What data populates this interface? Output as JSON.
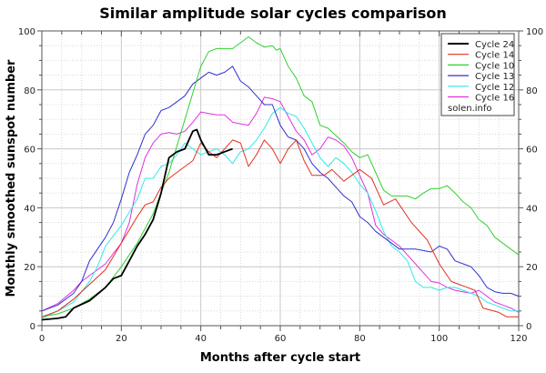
{
  "chart_data": {
    "type": "line",
    "title": "Similar amplitude solar cycles comparison",
    "xlabel": "Months after cycle start",
    "ylabel": "Monthly smoothed sunspot number",
    "xlim": [
      0,
      120
    ],
    "ylim": [
      0,
      100
    ],
    "xticks": [
      0,
      20,
      40,
      60,
      80,
      100,
      120
    ],
    "yticks": [
      0,
      20,
      40,
      60,
      80,
      100
    ],
    "grid": true,
    "right_axis_labels": true,
    "legend_position": "top-right",
    "legend_note": "solen.info",
    "series": [
      {
        "name": "Cycle 24",
        "color": "#000000",
        "points": [
          [
            0,
            2
          ],
          [
            4,
            2.5
          ],
          [
            6,
            3
          ],
          [
            8,
            6
          ],
          [
            12,
            8.5
          ],
          [
            16,
            13
          ],
          [
            18,
            16
          ],
          [
            20,
            17
          ],
          [
            22,
            22
          ],
          [
            24,
            27
          ],
          [
            26,
            31
          ],
          [
            28,
            36
          ],
          [
            30,
            45
          ],
          [
            32,
            57
          ],
          [
            34,
            59
          ],
          [
            36,
            60
          ],
          [
            38,
            66
          ],
          [
            39,
            66.5
          ],
          [
            40,
            63
          ],
          [
            42,
            58
          ],
          [
            44,
            58
          ],
          [
            46,
            59
          ],
          [
            48,
            60
          ]
        ]
      },
      {
        "name": "Cycle 14",
        "color": "#e03020",
        "points": [
          [
            0,
            3
          ],
          [
            4,
            5
          ],
          [
            8,
            9
          ],
          [
            12,
            14
          ],
          [
            16,
            19
          ],
          [
            20,
            28
          ],
          [
            24,
            37
          ],
          [
            26,
            41
          ],
          [
            28,
            42
          ],
          [
            30,
            47
          ],
          [
            32,
            50
          ],
          [
            36,
            54
          ],
          [
            38,
            56
          ],
          [
            40,
            62
          ],
          [
            42,
            59
          ],
          [
            44,
            57
          ],
          [
            46,
            60
          ],
          [
            48,
            63
          ],
          [
            50,
            62
          ],
          [
            52,
            54
          ],
          [
            54,
            58
          ],
          [
            56,
            63
          ],
          [
            58,
            60
          ],
          [
            60,
            55
          ],
          [
            62,
            60
          ],
          [
            64,
            63
          ],
          [
            66,
            56
          ],
          [
            68,
            51
          ],
          [
            71,
            51
          ],
          [
            73,
            53
          ],
          [
            76,
            49
          ],
          [
            80,
            53
          ],
          [
            83,
            50
          ],
          [
            86,
            41
          ],
          [
            89,
            43
          ],
          [
            93,
            35
          ],
          [
            97,
            29
          ],
          [
            100,
            21
          ],
          [
            103,
            15
          ],
          [
            105,
            14
          ],
          [
            109,
            12
          ],
          [
            111,
            6
          ],
          [
            115,
            4.5
          ],
          [
            117,
            3
          ],
          [
            120,
            3
          ]
        ]
      },
      {
        "name": "Cycle 10",
        "color": "#30d030",
        "points": [
          [
            0,
            3
          ],
          [
            4,
            4
          ],
          [
            8,
            6
          ],
          [
            12,
            9
          ],
          [
            16,
            13
          ],
          [
            20,
            20
          ],
          [
            24,
            28
          ],
          [
            28,
            38
          ],
          [
            32,
            52
          ],
          [
            36,
            70
          ],
          [
            40,
            88
          ],
          [
            42,
            93
          ],
          [
            44,
            94
          ],
          [
            48,
            94
          ],
          [
            50,
            96
          ],
          [
            52,
            98
          ],
          [
            54,
            96
          ],
          [
            56,
            94.5
          ],
          [
            58,
            95
          ],
          [
            59,
            93.5
          ],
          [
            60,
            94
          ],
          [
            62,
            88
          ],
          [
            64,
            84
          ],
          [
            66,
            78
          ],
          [
            68,
            76
          ],
          [
            70,
            68
          ],
          [
            72,
            67
          ],
          [
            76,
            62
          ],
          [
            78,
            59
          ],
          [
            80,
            57
          ],
          [
            82,
            58
          ],
          [
            84,
            52
          ],
          [
            86,
            46
          ],
          [
            88,
            44
          ],
          [
            92,
            44
          ],
          [
            94,
            43
          ],
          [
            96,
            45
          ],
          [
            98,
            46.5
          ],
          [
            100,
            46.5
          ],
          [
            102,
            47.5
          ],
          [
            104,
            45
          ],
          [
            106,
            42
          ],
          [
            108,
            40
          ],
          [
            110,
            36
          ],
          [
            112,
            34
          ],
          [
            114,
            30
          ],
          [
            116,
            28
          ],
          [
            118,
            26
          ],
          [
            120,
            24
          ]
        ]
      },
      {
        "name": "Cycle 13",
        "color": "#3030d0",
        "points": [
          [
            0,
            5
          ],
          [
            4,
            7
          ],
          [
            8,
            11
          ],
          [
            10,
            15
          ],
          [
            12,
            22
          ],
          [
            16,
            30
          ],
          [
            18,
            35
          ],
          [
            20,
            43
          ],
          [
            22,
            52
          ],
          [
            24,
            58
          ],
          [
            26,
            65
          ],
          [
            28,
            68
          ],
          [
            30,
            73
          ],
          [
            32,
            74
          ],
          [
            34,
            76
          ],
          [
            36,
            78
          ],
          [
            38,
            82
          ],
          [
            40,
            84
          ],
          [
            42,
            86
          ],
          [
            44,
            85
          ],
          [
            46,
            86
          ],
          [
            48,
            88
          ],
          [
            50,
            83
          ],
          [
            52,
            81
          ],
          [
            54,
            78
          ],
          [
            56,
            75
          ],
          [
            58,
            75
          ],
          [
            60,
            68
          ],
          [
            62,
            64
          ],
          [
            64,
            63
          ],
          [
            66,
            60
          ],
          [
            68,
            55
          ],
          [
            70,
            52
          ],
          [
            72,
            50
          ],
          [
            74,
            47
          ],
          [
            76,
            44
          ],
          [
            78,
            42
          ],
          [
            80,
            37
          ],
          [
            82,
            35
          ],
          [
            84,
            32
          ],
          [
            86,
            30
          ],
          [
            88,
            28
          ],
          [
            90,
            26
          ],
          [
            92,
            26
          ],
          [
            94,
            26
          ],
          [
            96,
            25.5
          ],
          [
            98,
            25
          ],
          [
            100,
            27
          ],
          [
            102,
            26
          ],
          [
            104,
            22
          ],
          [
            106,
            21
          ],
          [
            108,
            20
          ],
          [
            110,
            17
          ],
          [
            112,
            13
          ],
          [
            114,
            11.5
          ],
          [
            116,
            11
          ],
          [
            118,
            11
          ],
          [
            120,
            10
          ]
        ]
      },
      {
        "name": "Cycle 12",
        "color": "#30e8e8",
        "points": [
          [
            0,
            2.5
          ],
          [
            4,
            5
          ],
          [
            8,
            8
          ],
          [
            12,
            15
          ],
          [
            14,
            20
          ],
          [
            16,
            27
          ],
          [
            20,
            34
          ],
          [
            24,
            43
          ],
          [
            26,
            50
          ],
          [
            28,
            50
          ],
          [
            30,
            54
          ],
          [
            32,
            55
          ],
          [
            34,
            58
          ],
          [
            36,
            62
          ],
          [
            38,
            60
          ],
          [
            40,
            58
          ],
          [
            42,
            59
          ],
          [
            44,
            60
          ],
          [
            46,
            58
          ],
          [
            48,
            55
          ],
          [
            50,
            59
          ],
          [
            52,
            60
          ],
          [
            54,
            63
          ],
          [
            56,
            67
          ],
          [
            58,
            72
          ],
          [
            60,
            74
          ],
          [
            62,
            72
          ],
          [
            64,
            71
          ],
          [
            66,
            67
          ],
          [
            68,
            62
          ],
          [
            70,
            57
          ],
          [
            72,
            54
          ],
          [
            74,
            57
          ],
          [
            76,
            55
          ],
          [
            78,
            52
          ],
          [
            80,
            48
          ],
          [
            82,
            45
          ],
          [
            84,
            39
          ],
          [
            86,
            32
          ],
          [
            88,
            27
          ],
          [
            90,
            25
          ],
          [
            92,
            22
          ],
          [
            94,
            15
          ],
          [
            96,
            13
          ],
          [
            98,
            13
          ],
          [
            100,
            12
          ],
          [
            102,
            13
          ],
          [
            104,
            13
          ],
          [
            106,
            12
          ],
          [
            108,
            11
          ],
          [
            110,
            10
          ],
          [
            112,
            8
          ],
          [
            114,
            7
          ],
          [
            116,
            6
          ],
          [
            118,
            5
          ],
          [
            120,
            5
          ]
        ]
      },
      {
        "name": "Cycle 16",
        "color": "#e030e0",
        "points": [
          [
            0,
            5
          ],
          [
            4,
            7.5
          ],
          [
            8,
            12
          ],
          [
            10,
            15
          ],
          [
            12,
            17
          ],
          [
            16,
            21
          ],
          [
            20,
            28
          ],
          [
            22,
            35
          ],
          [
            24,
            48
          ],
          [
            26,
            57
          ],
          [
            28,
            62
          ],
          [
            30,
            65
          ],
          [
            32,
            65.5
          ],
          [
            34,
            65
          ],
          [
            36,
            66
          ],
          [
            38,
            69
          ],
          [
            40,
            72.5
          ],
          [
            42,
            72
          ],
          [
            44,
            71.5
          ],
          [
            46,
            71.5
          ],
          [
            48,
            69
          ],
          [
            50,
            68.5
          ],
          [
            52,
            68
          ],
          [
            54,
            72
          ],
          [
            56,
            77.5
          ],
          [
            58,
            77
          ],
          [
            60,
            76
          ],
          [
            62,
            71
          ],
          [
            64,
            66
          ],
          [
            66,
            63
          ],
          [
            68,
            58
          ],
          [
            70,
            60
          ],
          [
            72,
            64
          ],
          [
            74,
            63
          ],
          [
            76,
            61
          ],
          [
            78,
            57
          ],
          [
            80,
            51
          ],
          [
            82,
            45
          ],
          [
            84,
            34
          ],
          [
            86,
            31
          ],
          [
            88,
            29
          ],
          [
            90,
            27
          ],
          [
            92,
            24
          ],
          [
            94,
            21
          ],
          [
            96,
            18
          ],
          [
            98,
            15
          ],
          [
            100,
            14.5
          ],
          [
            102,
            13
          ],
          [
            104,
            12
          ],
          [
            106,
            11.5
          ],
          [
            108,
            11
          ],
          [
            110,
            12
          ],
          [
            112,
            10
          ],
          [
            114,
            8
          ],
          [
            116,
            7
          ],
          [
            118,
            6
          ],
          [
            120,
            4.5
          ]
        ]
      }
    ]
  }
}
